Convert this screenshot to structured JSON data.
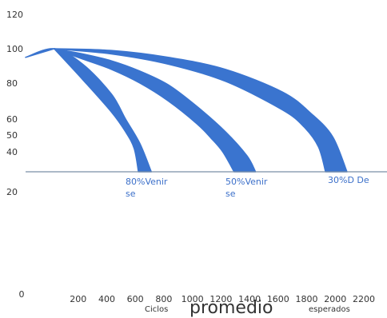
{
  "chart_data": {
    "type": "area",
    "title": "",
    "xlabel": {
      "prefix": "Ciclos",
      "main": "promedio",
      "suffix": "esperados"
    },
    "ylabel": "",
    "x_ticks": [
      0,
      200,
      400,
      600,
      800,
      1000,
      1200,
      1400,
      1600,
      1800,
      2000,
      2200
    ],
    "y_ticks": [
      20,
      40,
      50,
      60,
      80,
      100,
      120
    ],
    "reference_line_y": 30,
    "grid": false,
    "legend": "none",
    "color": "#3a74cf",
    "series": [
      {
        "label": "80%Venir",
        "label_extra": "se",
        "upper": {
          "x": [
            0,
            200,
            400,
            600,
            700,
            800,
            880
          ],
          "y": [
            95,
            100,
            91,
            74,
            60,
            45,
            30
          ]
        },
        "lower": {
          "x": [
            200,
            400,
            600,
            700,
            760,
            790
          ],
          "y": [
            100,
            82,
            64,
            52,
            42,
            30
          ]
        }
      },
      {
        "label": "50%Venir",
        "label_extra": "se",
        "upper": {
          "x": [
            200,
            400,
            600,
            800,
            1000,
            1200,
            1400,
            1550,
            1610
          ],
          "y": [
            100,
            97,
            93,
            87,
            79,
            67,
            52,
            38,
            30
          ]
        },
        "lower": {
          "x": [
            200,
            400,
            600,
            800,
            1000,
            1200,
            1300,
            1380,
            1460
          ],
          "y": [
            100,
            94,
            88,
            80,
            70,
            57,
            48,
            40,
            30
          ]
        }
      },
      {
        "label": "30%D De",
        "upper": {
          "x": [
            200,
            600,
            1000,
            1400,
            1800,
            2000,
            2150,
            2250
          ],
          "y": [
            100,
            99,
            95,
            88,
            75,
            63,
            49,
            30
          ]
        },
        "lower": {
          "x": [
            200,
            600,
            1000,
            1400,
            1800,
            1950,
            2050,
            2100
          ],
          "y": [
            100,
            97,
            91,
            81,
            65,
            55,
            43,
            30
          ]
        }
      }
    ]
  }
}
